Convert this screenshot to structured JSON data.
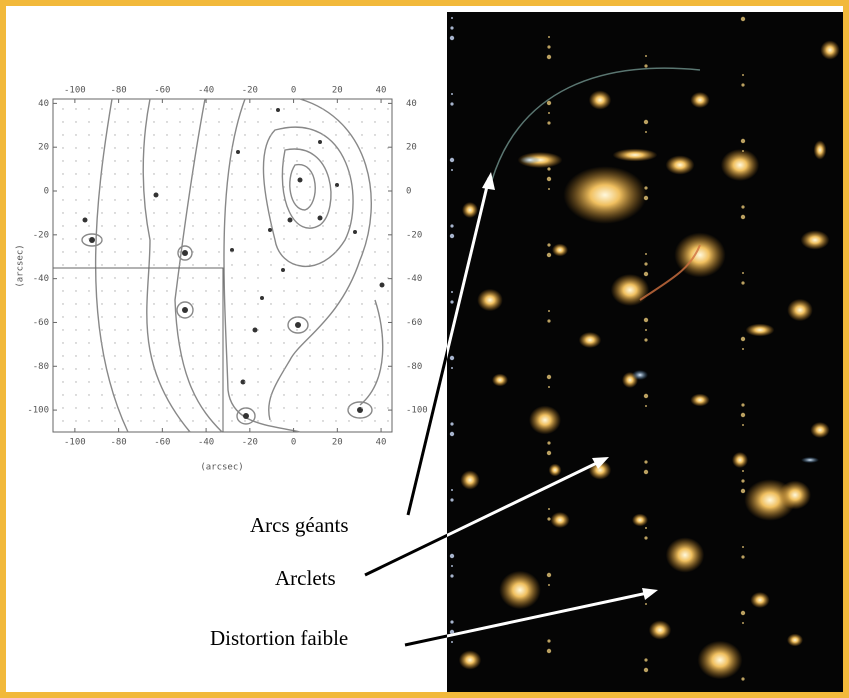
{
  "figure": {
    "map": {
      "xlim": [
        -110,
        45
      ],
      "ylim": [
        -110,
        42
      ],
      "xticks": [
        -100,
        -80,
        -60,
        -40,
        -20,
        0,
        20,
        40
      ],
      "yticks": [
        40,
        20,
        0,
        -20,
        -40,
        -60,
        -80,
        -100
      ],
      "xlabel": "(arcsec)",
      "ylabel": "(arcsec)"
    },
    "annotations": [
      "Arcs géants",
      "Arclets",
      "Distortion faible"
    ]
  }
}
